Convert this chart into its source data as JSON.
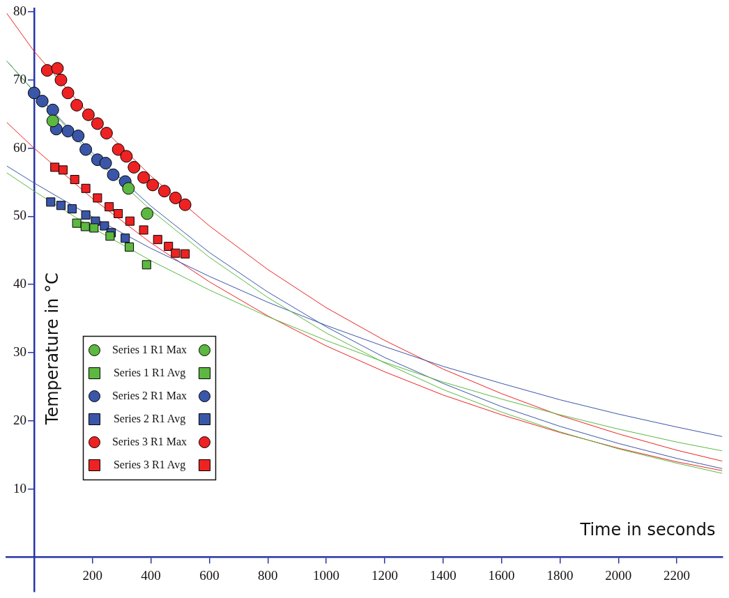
{
  "chart_data": {
    "type": "scatter",
    "xlabel": "Time in seconds",
    "ylabel": "Temperature in °C",
    "xlim": [
      -94,
      2356
    ],
    "ylim": [
      -5,
      80.5
    ],
    "xticks": [
      200,
      400,
      600,
      800,
      1000,
      1200,
      1400,
      1600,
      1800,
      2000,
      2200
    ],
    "yticks": [
      10,
      20,
      30,
      40,
      50,
      60,
      70,
      80
    ],
    "legend": "bottom left",
    "series": [
      {
        "name": "Series 1 R1 Max",
        "color": "#5cb840",
        "marker": "circle",
        "x": [
          64,
          323,
          387
        ],
        "values": [
          64.0,
          54.1,
          50.4
        ]
      },
      {
        "name": "Series 1 R1 Avg",
        "color": "#5cb840",
        "marker": "square",
        "x": [
          146,
          175,
          205,
          260,
          326,
          385
        ],
        "values": [
          49.0,
          48.5,
          48.3,
          47.1,
          45.5,
          42.9
        ]
      },
      {
        "name": "Series 2 R1 Max",
        "color": "#3a56a8",
        "marker": "circle",
        "x": [
          0,
          28,
          64,
          76,
          116,
          151,
          177,
          217,
          245,
          271,
          312
        ],
        "values": [
          68.1,
          66.9,
          65.6,
          62.8,
          62.5,
          61.8,
          59.8,
          58.3,
          57.8,
          56.1,
          55.1
        ]
      },
      {
        "name": "Series 2 R1 Avg",
        "color": "#3a56a8",
        "marker": "square",
        "x": [
          57,
          92,
          130,
          177,
          210,
          241,
          264,
          312
        ],
        "values": [
          52.1,
          51.6,
          51.1,
          50.2,
          49.3,
          48.6,
          47.6,
          46.8
        ]
      },
      {
        "name": "Series 3 R1 Max",
        "color": "#ee2222",
        "marker": "circle",
        "x": [
          45,
          80,
          92,
          116,
          146,
          186,
          217,
          248,
          288,
          316,
          342,
          375,
          406,
          446,
          484,
          517
        ],
        "values": [
          71.4,
          71.7,
          70.0,
          68.1,
          66.3,
          64.9,
          63.6,
          62.2,
          59.8,
          58.8,
          57.2,
          55.7,
          54.6,
          53.7,
          52.7,
          51.7
        ]
      },
      {
        "name": "Series 3 R1 Avg",
        "color": "#ee2222",
        "marker": "square",
        "x": [
          71,
          99,
          139,
          177,
          217,
          257,
          288,
          328,
          375,
          423,
          460,
          484,
          517
        ],
        "values": [
          57.2,
          56.8,
          55.4,
          54.1,
          52.7,
          51.4,
          50.4,
          49.3,
          48.0,
          46.6,
          45.6,
          44.6,
          44.5
        ]
      },
      {
        "type": "line",
        "color": "#5cb840",
        "marker": "none",
        "x": [
          -94,
          200,
          400,
          600,
          800,
          1000,
          1200,
          1400,
          1600,
          1800,
          2000,
          2200,
          2356
        ],
        "values": [
          72.8,
          58.8,
          50.9,
          44.0,
          38.1,
          32.9,
          28.5,
          24.6,
          21.3,
          18.4,
          15.9,
          13.8,
          12.3
        ]
      },
      {
        "type": "line",
        "color": "#5cb840",
        "marker": "none",
        "x": [
          -94,
          0,
          200,
          400,
          600,
          800,
          1000,
          1200,
          1400,
          1600,
          1800,
          2000,
          2200,
          2356
        ],
        "values": [
          56.4,
          53.7,
          48.3,
          43.5,
          39.2,
          35.3,
          31.8,
          28.6,
          25.7,
          23.2,
          20.9,
          18.8,
          16.9,
          15.6
        ]
      },
      {
        "type": "line",
        "color": "#3a56a8",
        "marker": "none",
        "x": [
          -94,
          0,
          200,
          400,
          600,
          800,
          1000,
          1200,
          1400,
          1600,
          1800,
          2000,
          2200,
          2356
        ],
        "values": [
          72.8,
          68.3,
          59.3,
          51.5,
          44.7,
          38.9,
          33.8,
          29.3,
          25.5,
          22.1,
          19.2,
          16.7,
          14.5,
          13.0
        ]
      },
      {
        "type": "line",
        "color": "#3a56a8",
        "marker": "none",
        "x": [
          -94,
          0,
          200,
          400,
          600,
          800,
          1000,
          1200,
          1400,
          1600,
          1800,
          2000,
          2200,
          2356
        ],
        "values": [
          57.4,
          54.9,
          49.9,
          45.3,
          41.2,
          37.4,
          34.0,
          30.9,
          28.0,
          25.5,
          23.1,
          21.0,
          19.1,
          17.7
        ]
      },
      {
        "type": "line",
        "color": "#ee2222",
        "marker": "none",
        "x": [
          -94,
          0,
          200,
          400,
          600,
          800,
          1000,
          1200,
          1400,
          1600,
          1800,
          2000,
          2200,
          2356
        ],
        "values": [
          79.8,
          74.2,
          64.4,
          55.9,
          48.6,
          42.2,
          36.6,
          31.8,
          27.6,
          24.0,
          20.8,
          18.1,
          15.7,
          14.1
        ]
      },
      {
        "type": "line",
        "color": "#ee2222",
        "marker": "none",
        "x": [
          -94,
          0,
          200,
          400,
          600,
          800,
          1000,
          1200,
          1400,
          1600,
          1800,
          2000,
          2200,
          2356
        ],
        "values": [
          63.8,
          60,
          52.6,
          46.1,
          40.4,
          35.4,
          31.0,
          27.2,
          23.8,
          20.9,
          18.3,
          16.0,
          14.0,
          12.7
        ]
      }
    ]
  }
}
